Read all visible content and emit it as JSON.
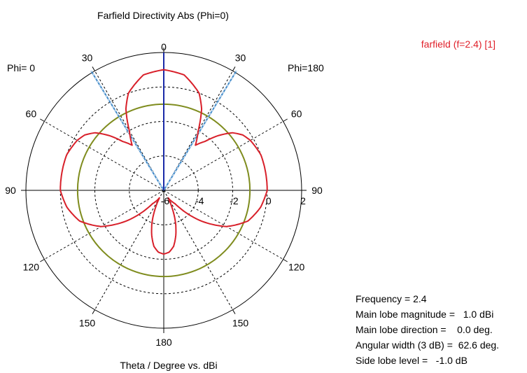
{
  "chart_data": {
    "type": "polar",
    "title": "Farfield Directivity Abs (Phi=0)",
    "xlabel": "Theta / Degree vs. dBi",
    "left_label": "Phi=  0",
    "right_label": "Phi=180",
    "radial_range": [
      -6,
      2
    ],
    "radial_ticks": [
      "-6",
      "-4",
      "-2",
      "0",
      "2"
    ],
    "angle_labels": {
      "left": [
        "0",
        "30",
        "60",
        "90",
        "120",
        "150",
        "180"
      ],
      "right": [
        "30",
        "60",
        "90",
        "120",
        "150"
      ]
    },
    "grid": true,
    "legend": {
      "label": "farfield (f=2.4) [1]",
      "position": "top-right",
      "color": "#e0202a"
    },
    "series": [
      {
        "name": "farfield (f=2.4) [1]",
        "color": "#d8202a",
        "theta_deg": [
          0,
          10,
          20,
          25,
          30,
          35,
          40,
          45,
          50,
          55,
          60,
          65,
          70,
          80,
          90,
          100,
          110,
          120,
          130,
          140,
          150,
          155,
          160,
          165,
          170,
          175,
          180
        ],
        "directivity_dBi": [
          1.0,
          0.8,
          0.0,
          -0.8,
          -2.0,
          -2.8,
          -2.3,
          -1.5,
          -0.8,
          -0.4,
          -0.2,
          -0.1,
          0.0,
          0.0,
          0.0,
          -0.3,
          -0.8,
          -1.8,
          -3.3,
          -5.0,
          -5.5,
          -4.8,
          -4.0,
          -3.3,
          -2.7,
          -2.4,
          -2.3
        ]
      }
    ],
    "reference_circle_dBi": -1.0,
    "main_lobe_direction_deg": 0.0,
    "beamwidth_lines_deg": [
      -31.3,
      31.3
    ],
    "stats": [
      {
        "label": "Frequency = ",
        "value": "2.4"
      },
      {
        "label": "Main lobe magnitude =  ",
        "value": " 1.0 dBi"
      },
      {
        "label": "Main lobe direction =  ",
        "value": "  0.0 deg."
      },
      {
        "label": "Angular width (3 dB) =  ",
        "value": "62.6 deg."
      },
      {
        "label": "Side lobe level =  ",
        "value": " -1.0 dB"
      }
    ]
  }
}
